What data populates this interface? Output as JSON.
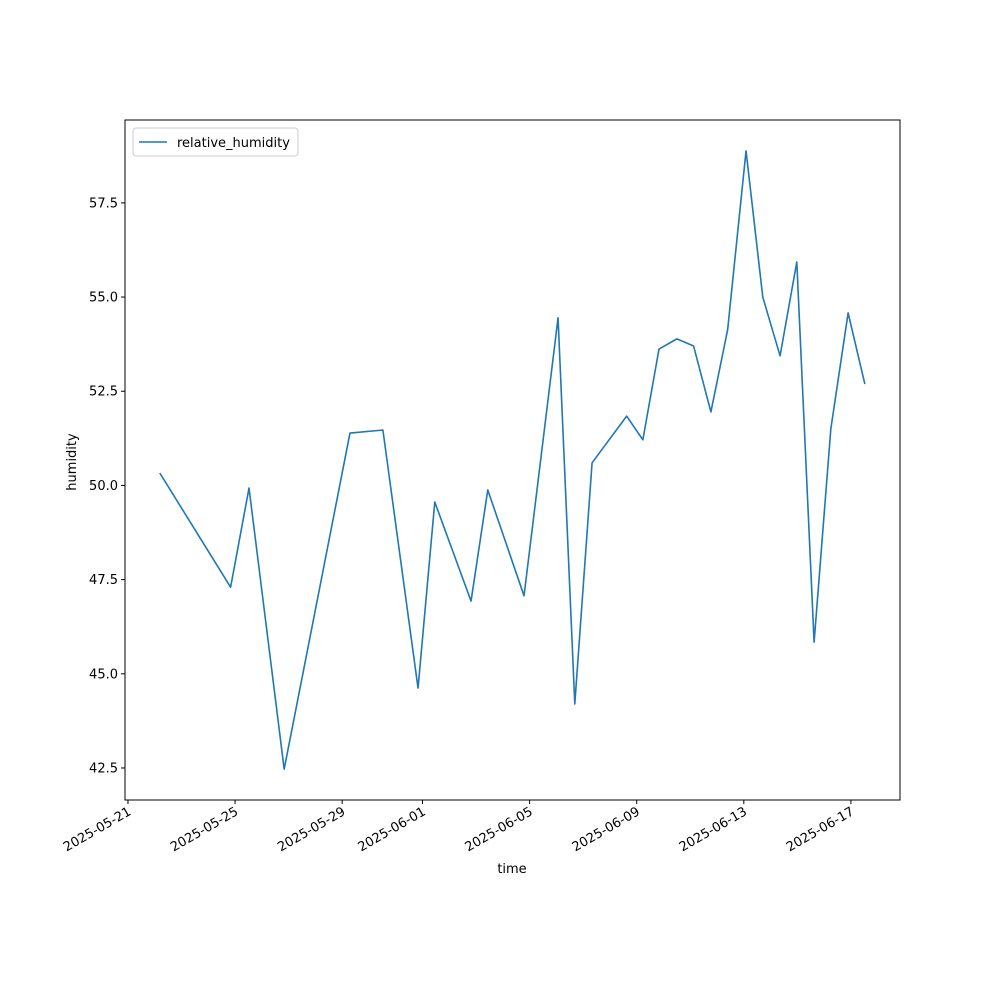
{
  "chart_data": {
    "type": "line",
    "xlabel": "time",
    "ylabel": "humidity",
    "x": [
      "2025-05-22T04:30",
      "2025-05-24T20:00",
      "2025-05-25T12:30",
      "2025-05-26T20:00",
      "2025-05-29T07:00",
      "2025-05-30T12:30",
      "2025-05-31T20:00",
      "2025-06-01T11:00",
      "2025-06-02T19:30",
      "2025-06-03T10:30",
      "2025-06-04T19:00",
      "2025-06-06T01:30",
      "2025-06-06T16:30",
      "2025-06-07T08:00",
      "2025-06-08T15:00",
      "2025-06-09T05:30",
      "2025-06-09T20:00",
      "2025-06-10T12:00",
      "2025-06-11T03:00",
      "2025-06-11T18:30",
      "2025-06-12T09:30",
      "2025-06-13T02:00",
      "2025-06-13T17:00",
      "2025-06-14T08:30",
      "2025-06-14T23:30",
      "2025-06-15T15:00",
      "2025-06-16T06:00",
      "2025-06-16T21:30",
      "2025-06-17T12:30"
    ],
    "series": [
      {
        "name": "relative_humidity",
        "color": "#1f77b4",
        "values": [
          50.33,
          47.3,
          49.93,
          42.47,
          51.39,
          51.47,
          44.62,
          49.56,
          46.93,
          49.88,
          47.07,
          54.45,
          44.2,
          50.6,
          51.84,
          51.21,
          53.62,
          53.89,
          53.7,
          51.95,
          54.13,
          58.88,
          55.0,
          53.44,
          55.93,
          45.84,
          51.5,
          54.58,
          52.69
        ]
      }
    ],
    "xlim": [
      "2025-05-20T21:20",
      "2025-06-18T20:00"
    ],
    "xticks": [
      "2025-05-21",
      "2025-05-25",
      "2025-05-29",
      "2025-06-01",
      "2025-06-05",
      "2025-06-09",
      "2025-06-13",
      "2025-06-17"
    ],
    "ylim": [
      41.65,
      59.7
    ],
    "yticks": [
      {
        "value": 42.5,
        "label": "42.5"
      },
      {
        "value": 45,
        "label": "45.0"
      },
      {
        "value": 47.5,
        "label": "47.5"
      },
      {
        "value": 50,
        "label": "50.0"
      },
      {
        "value": 52.5,
        "label": "52.5"
      },
      {
        "value": 55,
        "label": "55.0"
      },
      {
        "value": 57.5,
        "label": "57.5"
      }
    ],
    "grid": false,
    "legend": "upper left"
  }
}
